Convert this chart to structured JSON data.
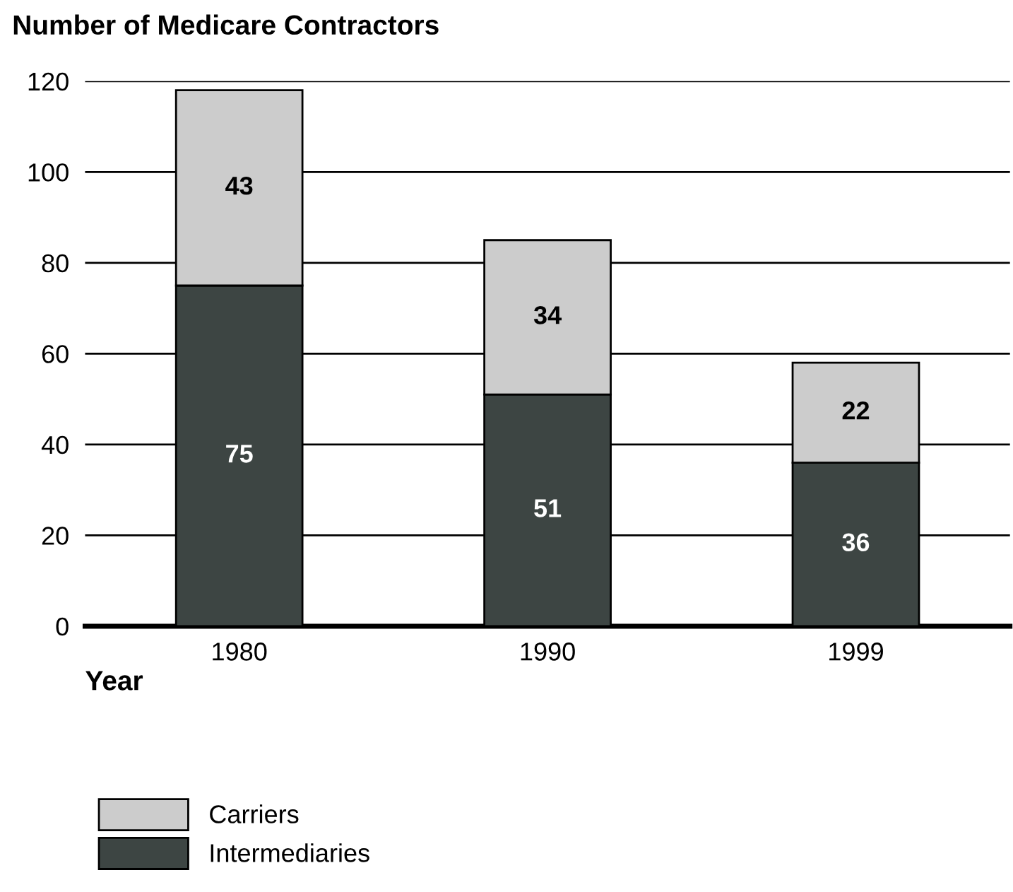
{
  "chart_data": {
    "type": "bar",
    "stacked": true,
    "ylabel": "Number of Medicare Contractors",
    "xlabel": "Year",
    "categories": [
      "1980",
      "1990",
      "1999"
    ],
    "series": [
      {
        "name": "Intermediaries",
        "color": "#3d4543",
        "values": [
          75,
          51,
          36
        ]
      },
      {
        "name": "Carriers",
        "color": "#cccccc",
        "values": [
          43,
          34,
          22
        ]
      }
    ],
    "ylim": [
      0,
      120
    ],
    "yticks": [
      0,
      20,
      40,
      60,
      80,
      100,
      120
    ],
    "grid": "y",
    "legend": "bottom left",
    "data_labels": true
  }
}
